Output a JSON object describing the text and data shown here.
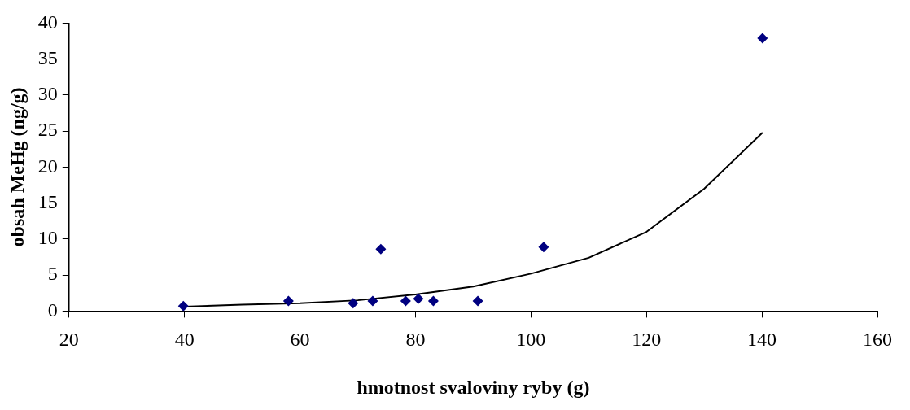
{
  "chart_data": {
    "type": "scatter",
    "xlabel": "hmotnost svaloviny ryby (g)",
    "ylabel": "obsah MeHg (ng/g)",
    "xlim": [
      20,
      160
    ],
    "xticks": [
      20,
      40,
      60,
      80,
      100,
      120,
      140,
      160
    ],
    "ylim": [
      0,
      40
    ],
    "yticks": [
      0,
      5,
      10,
      15,
      20,
      25,
      30,
      35,
      40
    ],
    "grid": false,
    "legend": false,
    "marker": "diamond",
    "series": [
      {
        "color": "#000080",
        "x": [
          39.8,
          58.0,
          69.2,
          72.6,
          74.0,
          78.3,
          80.5,
          83.1,
          90.8,
          102.2,
          140.1
        ],
        "values": [
          0.7,
          1.4,
          1.1,
          1.4,
          8.6,
          1.4,
          1.7,
          1.4,
          1.4,
          8.9,
          37.9
        ]
      },
      {
        "type": "line",
        "color": "#000000",
        "marker": "none",
        "line_style": "solid",
        "x": [
          40,
          50,
          60,
          70,
          80,
          90,
          100,
          110,
          120,
          130,
          140.1
        ],
        "values": [
          0.6,
          0.9,
          1.1,
          1.5,
          2.3,
          3.4,
          5.2,
          7.4,
          11.0,
          17.0,
          24.8
        ]
      }
    ]
  }
}
